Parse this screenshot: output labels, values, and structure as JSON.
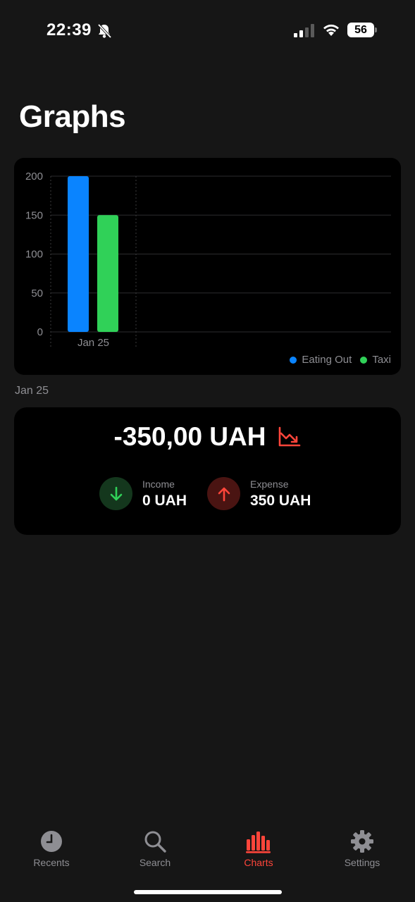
{
  "status_bar": {
    "time": "22:39",
    "battery": "56"
  },
  "page": {
    "title": "Graphs"
  },
  "colors": {
    "eating_out": "#0a84ff",
    "taxi": "#30d158",
    "accent": "#ff453a",
    "income_bg": "#14371d",
    "expense_bg": "#4a1412"
  },
  "chart_data": {
    "type": "bar",
    "categories": [
      "Jan 25"
    ],
    "series": [
      {
        "name": "Eating Out",
        "values": [
          200
        ]
      },
      {
        "name": "Taxi",
        "values": [
          150
        ]
      }
    ],
    "yticks": [
      0,
      50,
      100,
      150,
      200
    ],
    "ylim": [
      0,
      200
    ],
    "legend_position": "bottom-right"
  },
  "legend": {
    "items": [
      "Eating Out",
      "Taxi"
    ]
  },
  "summary": {
    "date": "Jan 25",
    "total": "-350,00 UAH",
    "income_label": "Income",
    "income_value": "0 UAH",
    "expense_label": "Expense",
    "expense_value": "350 UAH"
  },
  "tabs": [
    {
      "label": "Recents",
      "icon": "clock-icon"
    },
    {
      "label": "Search",
      "icon": "search-icon"
    },
    {
      "label": "Charts",
      "icon": "chart-icon",
      "active": true
    },
    {
      "label": "Settings",
      "icon": "gear-icon"
    }
  ]
}
